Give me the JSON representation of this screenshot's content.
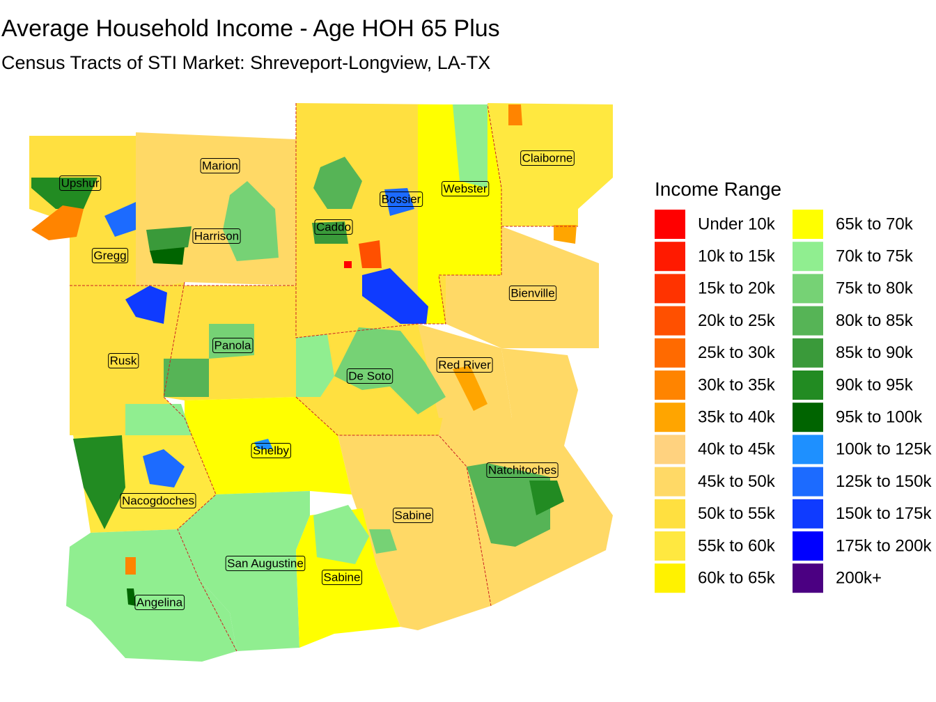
{
  "header": {
    "title": "Average Household Income - Age HOH 65 Plus",
    "subtitle": "Census Tracts of STI Market: Shreveport-Longview, LA-TX"
  },
  "legend": {
    "title": "Income Range",
    "items": [
      {
        "label": "Under 10k",
        "color": "#FF0000"
      },
      {
        "label": "10k to 15k",
        "color": "#FF1A00"
      },
      {
        "label": "15k to 20k",
        "color": "#FF3300"
      },
      {
        "label": "20k to 25k",
        "color": "#FF5000"
      },
      {
        "label": "25k to 30k",
        "color": "#FF6A00"
      },
      {
        "label": "30k to 35k",
        "color": "#FF8400"
      },
      {
        "label": "35k to 40k",
        "color": "#FFA500"
      },
      {
        "label": "40k to 45k",
        "color": "#FFD27F"
      },
      {
        "label": "45k to 50k",
        "color": "#FFD966"
      },
      {
        "label": "50k to 55k",
        "color": "#FFE040"
      },
      {
        "label": "55k to 60k",
        "color": "#FFE840"
      },
      {
        "label": "60k to 65k",
        "color": "#FFF200"
      },
      {
        "label": "65k to 70k",
        "color": "#FFFF00"
      },
      {
        "label": "70k to 75k",
        "color": "#90EE90"
      },
      {
        "label": "75k to 80k",
        "color": "#76D275"
      },
      {
        "label": "80k to 85k",
        "color": "#56B456"
      },
      {
        "label": "85k to 90k",
        "color": "#3A9A3A"
      },
      {
        "label": "90k to 95k",
        "color": "#228B22"
      },
      {
        "label": "95k to 100k",
        "color": "#006400"
      },
      {
        "label": "100k to 125k",
        "color": "#1E90FF"
      },
      {
        "label": "125k to 150k",
        "color": "#1C6BFF"
      },
      {
        "label": "150k to 175k",
        "color": "#0F3BFF"
      },
      {
        "label": "175k to 200k",
        "color": "#0000FF"
      },
      {
        "label": "200k+",
        "color": "#4B0082"
      }
    ]
  },
  "counties": [
    {
      "label": "Upshur"
    },
    {
      "label": "Marion"
    },
    {
      "label": "Gregg"
    },
    {
      "label": "Harrison"
    },
    {
      "label": "Caddo"
    },
    {
      "label": "Bossier"
    },
    {
      "label": "Webster"
    },
    {
      "label": "Claiborne"
    },
    {
      "label": "Bienville"
    },
    {
      "label": "Rusk"
    },
    {
      "label": "Panola"
    },
    {
      "label": "De Soto"
    },
    {
      "label": "Red River"
    },
    {
      "label": "Shelby"
    },
    {
      "label": "Natchitoches"
    },
    {
      "label": "Nacogdoches"
    },
    {
      "label": "Sabine"
    },
    {
      "label": "San Augustine"
    },
    {
      "label": "Sabine"
    },
    {
      "label": "Angelina"
    }
  ]
}
